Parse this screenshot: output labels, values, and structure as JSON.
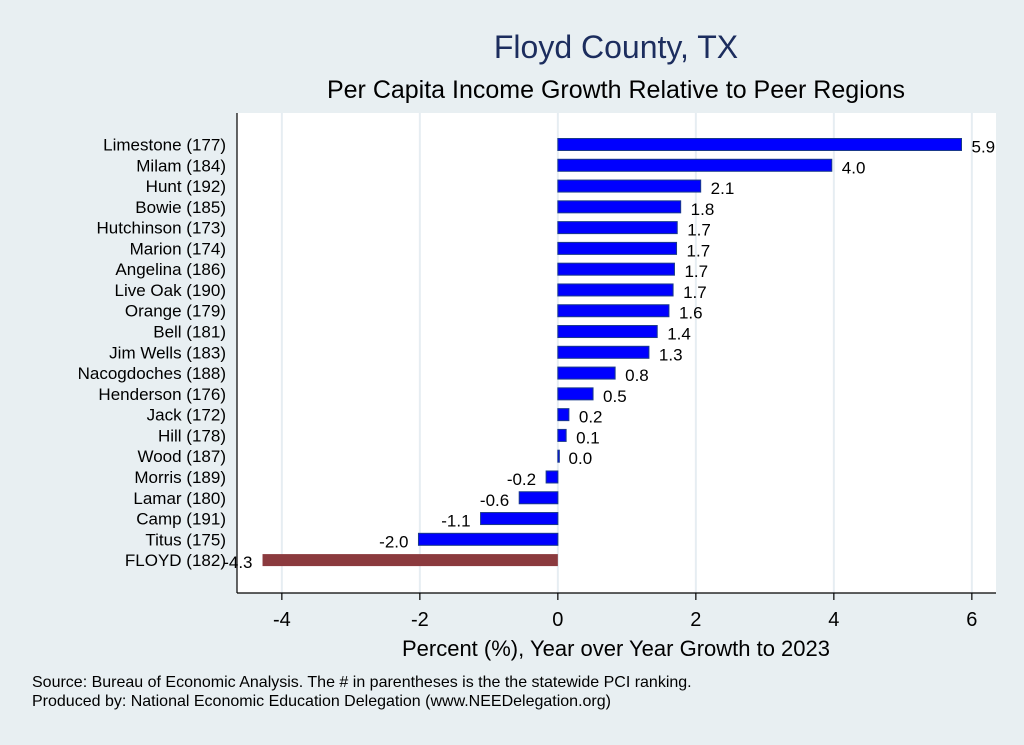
{
  "chart_data": {
    "type": "bar",
    "orientation": "horizontal",
    "title": "Floyd County, TX",
    "subtitle": "Per Capita Income Growth Relative to Peer Regions",
    "xlabel": "Percent (%), Year over Year Growth to 2023",
    "ylabel": "",
    "xlim": [
      -4.65,
      6.35
    ],
    "xticks": [
      -4,
      -2,
      0,
      2,
      4,
      6
    ],
    "xtick_labels": [
      "-4",
      "-2",
      "0",
      "2",
      "4",
      "6"
    ],
    "grid": true,
    "categories": [
      "Limestone (177)",
      "Milam (184)",
      "Hunt (192)",
      "Bowie (185)",
      "Hutchinson (173)",
      "Marion (174)",
      "Angelina (186)",
      "Live Oak (190)",
      "Orange (179)",
      "Bell (181)",
      "Jim Wells (183)",
      "Nacogdoches (188)",
      "Henderson (176)",
      "Jack (172)",
      "Hill (178)",
      "Wood (187)",
      "Morris (189)",
      "Lamar (180)",
      "Camp (191)",
      "Titus (175)",
      "FLOYD (182)"
    ],
    "values": [
      5.85,
      3.97,
      2.07,
      1.78,
      1.73,
      1.72,
      1.69,
      1.67,
      1.61,
      1.44,
      1.32,
      0.83,
      0.51,
      0.16,
      0.12,
      0.01,
      -0.17,
      -0.56,
      -1.12,
      -2.02,
      -4.28
    ],
    "value_labels": [
      "5.9",
      "4.0",
      "2.1",
      "1.8",
      "1.7",
      "1.7",
      "1.7",
      "1.7",
      "1.6",
      "1.4",
      "1.3",
      "0.8",
      "0.5",
      "0.2",
      "0.1",
      "0.0",
      "-0.2",
      "-0.6",
      "-1.1",
      "-2.0",
      "-4.3"
    ],
    "highlight_category": "FLOYD (182)",
    "colors": {
      "bar": "#0000ff",
      "bar_edge": "#1a3a8a",
      "highlight": "#8b3a3e",
      "title": "#1c2d5e",
      "background": "#e8eff2",
      "plot_background": "#ffffff",
      "grid": "#e6edf2"
    }
  },
  "notes": {
    "source": "Source: Bureau of Economic Analysis. The # in parentheses is the the statewide PCI ranking.",
    "produced_by": "Produced by: National Economic Education Delegation (www.NEEDelegation.org)"
  }
}
